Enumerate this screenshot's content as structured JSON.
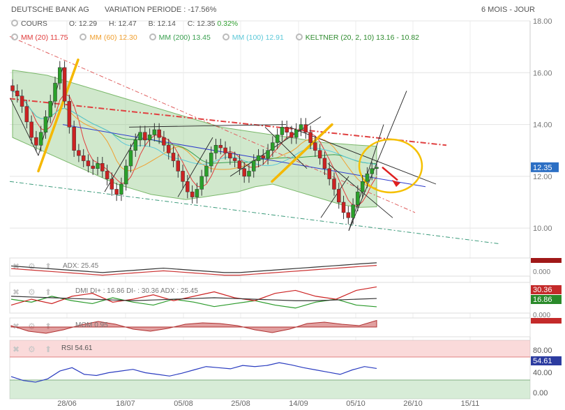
{
  "header": {
    "title": "DEUTSCHE BANK AG",
    "variation": "VARIATION PERIODE : -17.56%",
    "period": "6 MOIS - JOUR"
  },
  "ohlc": {
    "cours_label": "COURS",
    "o": "O: 12.29",
    "h": "H: 12.47",
    "b": "B: 12.14",
    "c": "C: 12.35",
    "chg": "0.32%"
  },
  "mas": {
    "mm20": {
      "label": "MM (20)",
      "value": "11.75",
      "color": "#e03c3c"
    },
    "mm60": {
      "label": "MM (60)",
      "value": "12.30",
      "color": "#f0a030"
    },
    "mm200": {
      "label": "MM (200)",
      "value": "13.45",
      "color": "#3aa050"
    },
    "mm100": {
      "label": "MM (100)",
      "value": "12.91",
      "color": "#5cc8d8"
    },
    "keltner": {
      "label": "KELTNER (20, 2, 10)",
      "value": "13.16 - 10.82",
      "color": "#2e8b2e"
    }
  },
  "price_badge": "12.35",
  "indicators": {
    "adx": "ADX: 25.45",
    "dmi": "DMI DI+ : 16.86 DI- : 30.36 ADX : 25.45",
    "mom": "MOM 0.95",
    "rsi": "RSI 54.61",
    "dmi_badges": [
      "30.36",
      "16.86"
    ],
    "dmi_axis": "0.000",
    "adx_axis": "0.000",
    "rsi_badge": "54.61",
    "rsi_axis": [
      "80.00",
      "40.00",
      "0.00"
    ]
  },
  "chart_data": {
    "type": "candlestick",
    "title": "DEUTSCHE BANK AG",
    "x_tick_labels": [
      "28/06",
      "18/07",
      "05/08",
      "25/08",
      "14/09",
      "05/10",
      "26/10",
      "15/11"
    ],
    "y_ticks": [
      10,
      12,
      14,
      16,
      18
    ],
    "ylim": [
      8.9,
      18.0
    ],
    "grid": true,
    "closes": [
      15.3,
      15.1,
      14.7,
      14.1,
      13.5,
      13.2,
      13.7,
      14.3,
      14.9,
      15.6,
      16.2,
      14.9,
      13.9,
      13.0,
      12.8,
      12.6,
      12.4,
      12.3,
      12.5,
      12.2,
      11.9,
      11.5,
      11.3,
      11.7,
      12.4,
      13.0,
      13.4,
      13.7,
      13.4,
      13.6,
      13.8,
      13.5,
      13.2,
      12.9,
      12.6,
      12.2,
      11.8,
      11.4,
      11.2,
      11.5,
      12.0,
      12.4,
      12.9,
      13.2,
      13.1,
      12.9,
      12.7,
      12.6,
      12.3,
      12.0,
      12.2,
      12.6,
      12.8,
      12.7,
      13.0,
      13.3,
      13.6,
      13.9,
      13.7,
      13.5,
      13.8,
      14.0,
      13.7,
      13.3,
      13.0,
      12.7,
      12.3,
      11.9,
      11.5,
      11.0,
      10.6,
      10.4,
      10.9,
      11.4,
      11.8,
      12.1,
      12.3,
      12.35
    ],
    "keltner_upper_approx": [
      16.1,
      16.0,
      15.9,
      15.7,
      15.5,
      15.3,
      15.1,
      14.9,
      14.7,
      14.5,
      14.3,
      14.1,
      13.9,
      13.8,
      13.7,
      13.6,
      13.5,
      13.4,
      13.3,
      13.25,
      13.2,
      13.16
    ],
    "keltner_lower_approx": [
      13.5,
      13.2,
      12.9,
      12.6,
      12.3,
      12.0,
      11.7,
      11.5,
      11.3,
      11.2,
      11.1,
      11.2,
      11.3,
      11.4,
      11.6,
      11.7,
      11.5,
      11.3,
      11.1,
      10.9,
      10.8,
      10.82
    ]
  },
  "rsi_data": [
    40,
    33,
    30,
    36,
    50,
    56,
    44,
    42,
    47,
    50,
    53,
    47,
    44,
    41,
    46,
    52,
    58,
    56,
    54,
    60,
    58,
    60,
    65,
    61,
    56,
    52,
    48,
    44,
    52,
    58,
    54.61
  ],
  "adx_data": [
    24,
    23.5,
    23,
    22.5,
    22,
    21.5,
    21,
    21.5,
    22,
    22.5,
    23,
    22.5,
    22,
    21.5,
    21,
    21,
    21.5,
    22,
    22.5,
    23,
    23.5,
    24,
    24.5,
    25,
    25.45
  ],
  "mom_data": [
    0.2,
    -0.6,
    -0.9,
    -0.4,
    0.3,
    0.8,
    0.4,
    -0.3,
    -0.6,
    -0.2,
    0.4,
    0.6,
    0.5,
    0.2,
    -0.4,
    -0.8,
    -0.3,
    0.5,
    0.7,
    0.4,
    0.2,
    0.95
  ],
  "dmi_plus": [
    22,
    20,
    24,
    21,
    19,
    23,
    20,
    18,
    22,
    20,
    17,
    19,
    21,
    18,
    16,
    20,
    22,
    18,
    16.86
  ],
  "dmi_minus": [
    18,
    22,
    19,
    24,
    26,
    20,
    22,
    25,
    21,
    24,
    27,
    23,
    21,
    26,
    28,
    24,
    22,
    28,
    30.36
  ]
}
